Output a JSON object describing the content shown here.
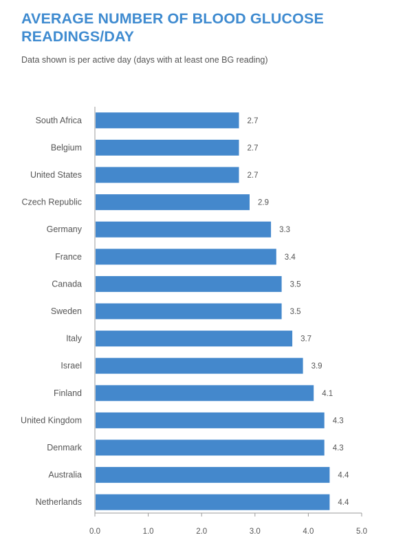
{
  "colors": {
    "title": "#3f8bd0",
    "bar": "#4488cc",
    "axis": "#9a9a9a",
    "text": "#555555"
  },
  "chart_data": {
    "type": "bar",
    "orientation": "horizontal",
    "title": "AVERAGE NUMBER OF BLOOD GLUCOSE READINGS/DAY",
    "subtitle": "Data shown is per active day (days with at least one BG reading)",
    "xlabel": "",
    "ylabel": "",
    "categories": [
      "South Africa",
      "Belgium",
      "United States",
      "Czech Republic",
      "Germany",
      "France",
      "Canada",
      "Sweden",
      "Italy",
      "Israel",
      "Finland",
      "United Kingdom",
      "Denmark",
      "Australia",
      "Netherlands"
    ],
    "values": [
      2.7,
      2.7,
      2.7,
      2.9,
      3.3,
      3.4,
      3.5,
      3.5,
      3.7,
      3.9,
      4.1,
      4.3,
      4.3,
      4.4,
      4.4
    ],
    "labels": [
      "2.7",
      "2.7",
      "2.7",
      "2.9",
      "3.3",
      "3.4",
      "3.5",
      "3.5",
      "3.7",
      "3.9",
      "4.1",
      "4.3",
      "4.3",
      "4.4",
      "4.4"
    ],
    "xlim": [
      0,
      5
    ],
    "xticks": [
      "0.0",
      "1.0",
      "2.0",
      "3.0",
      "4.0",
      "5.0"
    ],
    "grid": false,
    "legend": "none"
  }
}
